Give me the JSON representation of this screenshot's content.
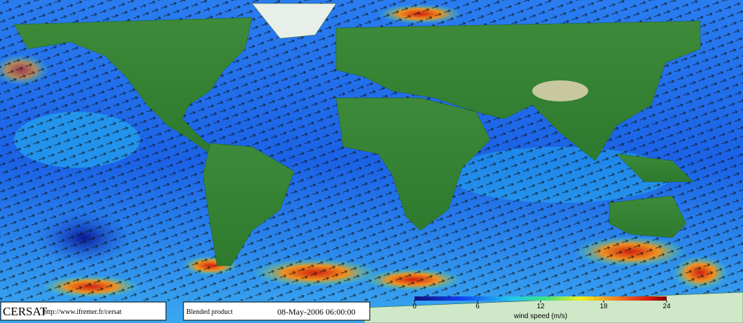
{
  "footer": {
    "logo": "CERSAT",
    "url": "http://www.ifremer.fr/cersat",
    "product": "Blended product",
    "date": "08-May-2006 06:00:00"
  },
  "colorbar": {
    "lim": [
      0,
      24
    ],
    "ticks": [
      0,
      6,
      12,
      18,
      24
    ],
    "label": "wind speed (m/s)"
  }
}
